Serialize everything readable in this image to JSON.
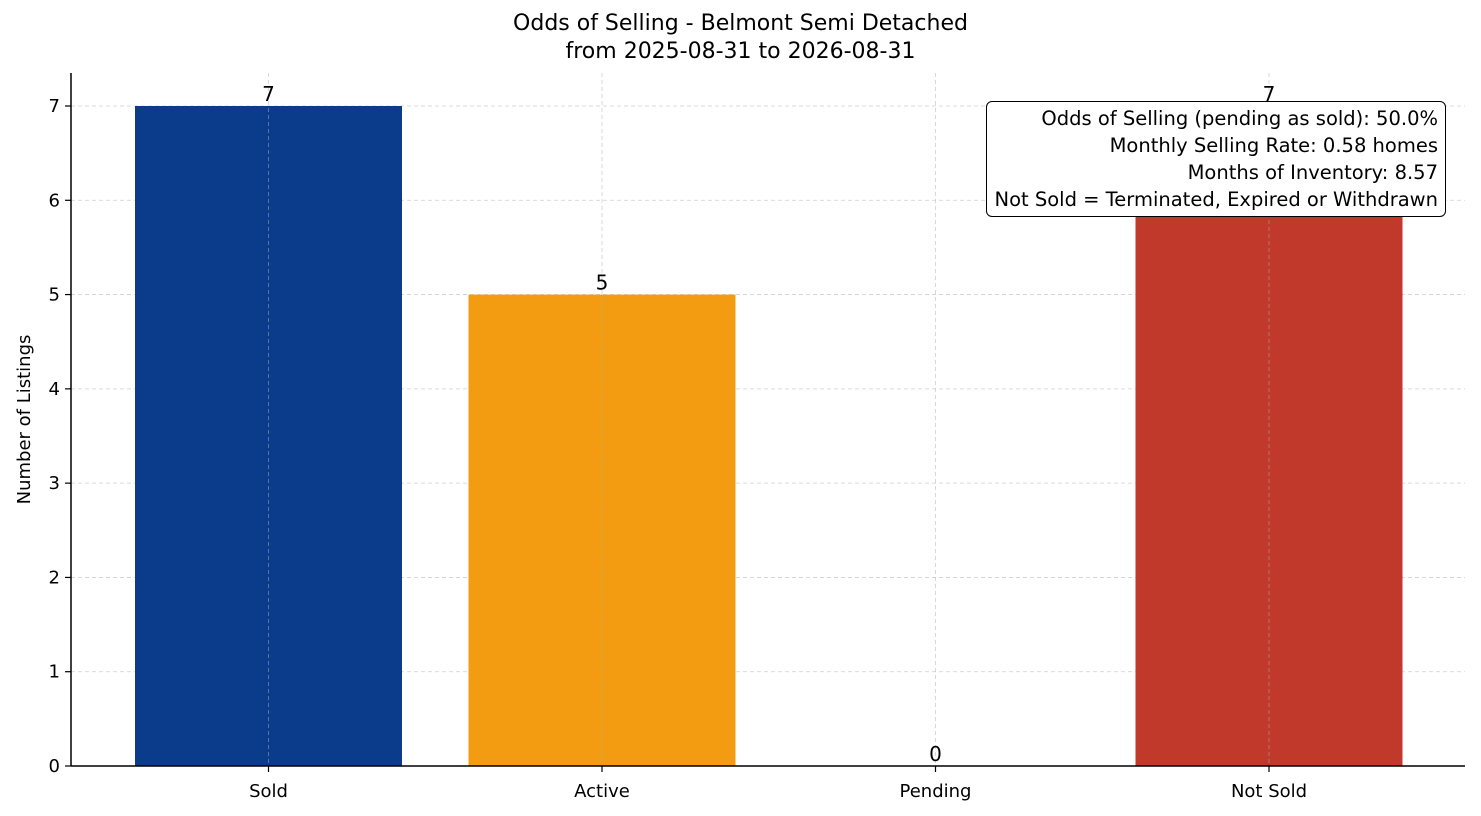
{
  "chart_data": {
    "type": "bar",
    "title": "Odds of Selling - Belmont Semi Detached",
    "subtitle": "from 2025-08-31 to 2026-08-31",
    "xlabel": "",
    "ylabel": "Number of Listings",
    "categories": [
      "Sold",
      "Active",
      "Pending",
      "Not Sold"
    ],
    "values": [
      7,
      5,
      0,
      7
    ],
    "value_labels": [
      "7",
      "5",
      "0",
      "7"
    ],
    "colors": [
      "#0b3c8c",
      "#f39c12",
      "#7f8c8d",
      "#c0392b"
    ],
    "ylim": [
      0,
      7.35
    ],
    "yticks": [
      "0",
      "1",
      "2",
      "3",
      "4",
      "5",
      "6",
      "7"
    ],
    "grid": true,
    "annotations": [
      "Odds of Selling (pending as sold): 50.0%",
      "Monthly Selling Rate: 0.58 homes",
      "Months of Inventory: 8.57",
      "Not Sold = Terminated, Expired or Withdrawn"
    ],
    "annotation_placement": "top-right"
  }
}
